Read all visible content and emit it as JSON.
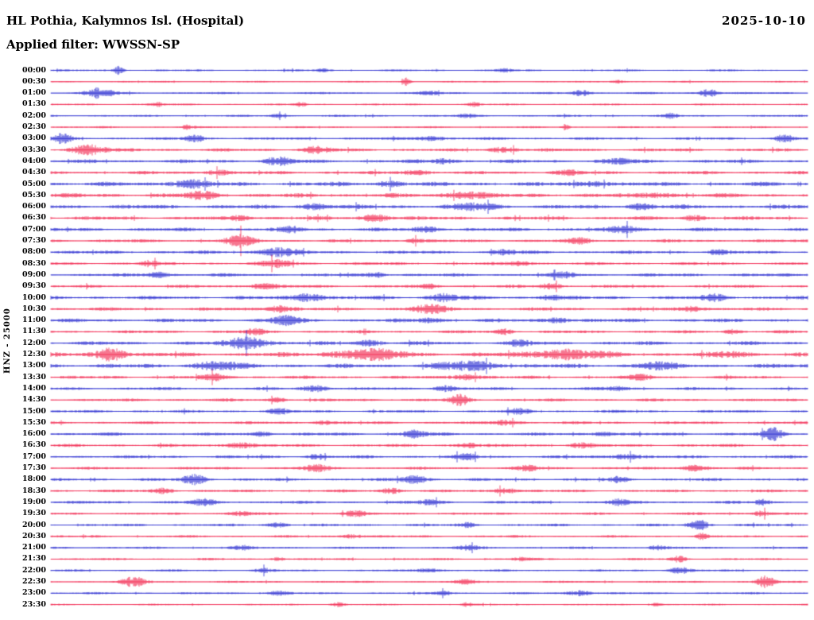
{
  "header": {
    "station_title": "HL Pothia, Kalymnos Isl. (Hospital)",
    "date": "2025-10-10",
    "filter_line": "Applied filter: WWSSN-SP"
  },
  "y_axis": {
    "channel_label": "HNZ - 25000"
  },
  "chart_data": {
    "type": "line",
    "title": "HL Pothia, Kalymnos Isl. (Hospital)",
    "subtitle": "Applied filter: WWSSN-SP",
    "date": "2025-10-10",
    "channel": "HNZ",
    "gain": "25000",
    "minutes_per_row": 30,
    "rows_count": 48,
    "legend": "none",
    "grid": false,
    "trace_colors": [
      "#1518cc",
      "#f01440"
    ],
    "rows": [
      {
        "label": "00:00",
        "base": 1.3,
        "bursts": [
          [
            0.09,
            0.006,
            5
          ],
          [
            0.36,
            0.01,
            2
          ],
          [
            0.6,
            0.01,
            2
          ]
        ]
      },
      {
        "label": "00:30",
        "base": 1.1,
        "bursts": [
          [
            0.47,
            0.005,
            4.5
          ],
          [
            0.75,
            0.01,
            2
          ]
        ]
      },
      {
        "label": "01:00",
        "base": 1.4,
        "bursts": [
          [
            0.065,
            0.018,
            6.5
          ],
          [
            0.5,
            0.012,
            2.5
          ],
          [
            0.7,
            0.012,
            4
          ],
          [
            0.87,
            0.012,
            5
          ]
        ]
      },
      {
        "label": "01:30",
        "base": 1.2,
        "bursts": [
          [
            0.14,
            0.01,
            2.5
          ],
          [
            0.33,
            0.008,
            2.5
          ],
          [
            0.56,
            0.008,
            2.5
          ]
        ]
      },
      {
        "label": "02:00",
        "base": 1.4,
        "bursts": [
          [
            0.3,
            0.01,
            2
          ],
          [
            0.55,
            0.012,
            2
          ],
          [
            0.82,
            0.01,
            2.5
          ]
        ]
      },
      {
        "label": "02:30",
        "base": 1.3,
        "bursts": [
          [
            0.18,
            0.008,
            2.5
          ],
          [
            0.68,
            0.005,
            3.5
          ]
        ]
      },
      {
        "label": "03:00",
        "base": 1.8,
        "bursts": [
          [
            0.015,
            0.012,
            5.5
          ],
          [
            0.19,
            0.012,
            4.5
          ],
          [
            0.5,
            0.02,
            2.5
          ],
          [
            0.97,
            0.012,
            4.5
          ]
        ]
      },
      {
        "label": "03:30",
        "base": 2.1,
        "bursts": [
          [
            0.05,
            0.022,
            6.5
          ],
          [
            0.35,
            0.02,
            3.5
          ],
          [
            0.6,
            0.02,
            3
          ]
        ]
      },
      {
        "label": "04:00",
        "base": 2.4,
        "bursts": [
          [
            0.3,
            0.018,
            4.5
          ],
          [
            0.52,
            0.015,
            3
          ],
          [
            0.75,
            0.02,
            2.5
          ]
        ]
      },
      {
        "label": "04:30",
        "base": 2.2,
        "bursts": [
          [
            0.22,
            0.015,
            3.5
          ],
          [
            0.48,
            0.02,
            2.5
          ],
          [
            0.68,
            0.018,
            3
          ]
        ]
      },
      {
        "label": "05:00",
        "base": 2.8,
        "bursts": [
          [
            0.18,
            0.025,
            4.5
          ],
          [
            0.45,
            0.02,
            3
          ],
          [
            0.72,
            0.02,
            3
          ]
        ]
      },
      {
        "label": "05:30",
        "base": 2.8,
        "bursts": [
          [
            0.2,
            0.02,
            4
          ],
          [
            0.55,
            0.025,
            4
          ],
          [
            0.8,
            0.02,
            3
          ]
        ]
      },
      {
        "label": "06:00",
        "base": 2.8,
        "bursts": [
          [
            0.35,
            0.02,
            3
          ],
          [
            0.56,
            0.025,
            4
          ],
          [
            0.78,
            0.02,
            3
          ]
        ]
      },
      {
        "label": "06:30",
        "base": 2.4,
        "bursts": [
          [
            0.25,
            0.015,
            3
          ],
          [
            0.43,
            0.018,
            4.5
          ],
          [
            0.85,
            0.015,
            3
          ]
        ]
      },
      {
        "label": "07:00",
        "base": 2.4,
        "bursts": [
          [
            0.32,
            0.015,
            3
          ],
          [
            0.5,
            0.02,
            3
          ],
          [
            0.76,
            0.02,
            4
          ]
        ]
      },
      {
        "label": "07:30",
        "base": 2.1,
        "bursts": [
          [
            0.25,
            0.018,
            7.5
          ],
          [
            0.48,
            0.012,
            3
          ],
          [
            0.7,
            0.015,
            3
          ]
        ]
      },
      {
        "label": "08:00",
        "base": 2.2,
        "bursts": [
          [
            0.3,
            0.022,
            5.5
          ],
          [
            0.6,
            0.015,
            3
          ],
          [
            0.88,
            0.012,
            2.5
          ]
        ]
      },
      {
        "label": "08:30",
        "base": 2.0,
        "bursts": [
          [
            0.13,
            0.01,
            3.5
          ],
          [
            0.3,
            0.018,
            4.5
          ],
          [
            0.62,
            0.015,
            3
          ]
        ]
      },
      {
        "label": "09:00",
        "base": 2.1,
        "bursts": [
          [
            0.14,
            0.014,
            4
          ],
          [
            0.43,
            0.012,
            3
          ],
          [
            0.68,
            0.015,
            3
          ]
        ]
      },
      {
        "label": "09:30",
        "base": 2.0,
        "bursts": [
          [
            0.28,
            0.018,
            3.5
          ],
          [
            0.5,
            0.012,
            3
          ],
          [
            0.66,
            0.014,
            3.5
          ]
        ]
      },
      {
        "label": "10:00",
        "base": 2.4,
        "bursts": [
          [
            0.34,
            0.02,
            5.5
          ],
          [
            0.52,
            0.018,
            4.5
          ],
          [
            0.66,
            0.015,
            3
          ],
          [
            0.88,
            0.018,
            3.5
          ]
        ]
      },
      {
        "label": "10:30",
        "base": 2.2,
        "bursts": [
          [
            0.3,
            0.018,
            4.5
          ],
          [
            0.5,
            0.025,
            4.5
          ],
          [
            0.85,
            0.015,
            3.5
          ]
        ]
      },
      {
        "label": "11:00",
        "base": 2.4,
        "bursts": [
          [
            0.31,
            0.018,
            5.5
          ],
          [
            0.5,
            0.015,
            3
          ],
          [
            0.67,
            0.015,
            3.5
          ]
        ]
      },
      {
        "label": "11:30",
        "base": 2.0,
        "bursts": [
          [
            0.27,
            0.014,
            3.5
          ],
          [
            0.6,
            0.012,
            3
          ],
          [
            0.9,
            0.012,
            2.5
          ]
        ]
      },
      {
        "label": "12:00",
        "base": 2.4,
        "bursts": [
          [
            0.26,
            0.025,
            7.5
          ],
          [
            0.42,
            0.018,
            3.5
          ],
          [
            0.62,
            0.015,
            3
          ]
        ]
      },
      {
        "label": "12:30",
        "base": 2.8,
        "bursts": [
          [
            0.08,
            0.018,
            8
          ],
          [
            0.42,
            0.05,
            5.5
          ],
          [
            0.68,
            0.05,
            5.5
          ],
          [
            0.9,
            0.02,
            3.5
          ]
        ]
      },
      {
        "label": "13:00",
        "base": 2.8,
        "bursts": [
          [
            0.22,
            0.03,
            4.5
          ],
          [
            0.55,
            0.045,
            4.5
          ],
          [
            0.8,
            0.025,
            3.5
          ]
        ]
      },
      {
        "label": "13:30",
        "base": 2.1,
        "bursts": [
          [
            0.22,
            0.018,
            3.5
          ],
          [
            0.55,
            0.018,
            3.5
          ],
          [
            0.78,
            0.015,
            3
          ]
        ]
      },
      {
        "label": "14:00",
        "base": 1.9,
        "bursts": [
          [
            0.35,
            0.018,
            3.5
          ],
          [
            0.52,
            0.014,
            3.5
          ],
          [
            0.75,
            0.015,
            2.5
          ]
        ]
      },
      {
        "label": "14:30",
        "base": 1.9,
        "bursts": [
          [
            0.3,
            0.012,
            2.5
          ],
          [
            0.54,
            0.013,
            6.5
          ]
        ]
      },
      {
        "label": "15:00",
        "base": 1.9,
        "bursts": [
          [
            0.3,
            0.018,
            2.5
          ],
          [
            0.62,
            0.015,
            2.5
          ]
        ]
      },
      {
        "label": "15:30",
        "base": 1.9,
        "bursts": [
          [
            0.36,
            0.014,
            2.5
          ],
          [
            0.6,
            0.018,
            3
          ]
        ]
      },
      {
        "label": "16:00",
        "base": 2.1,
        "bursts": [
          [
            0.28,
            0.012,
            3
          ],
          [
            0.48,
            0.014,
            4.5
          ],
          [
            0.73,
            0.012,
            3
          ],
          [
            0.955,
            0.013,
            6.5
          ]
        ]
      },
      {
        "label": "16:30",
        "base": 2.0,
        "bursts": [
          [
            0.25,
            0.018,
            3.5
          ],
          [
            0.55,
            0.014,
            3
          ],
          [
            0.7,
            0.014,
            3
          ]
        ]
      },
      {
        "label": "17:00",
        "base": 2.0,
        "bursts": [
          [
            0.35,
            0.012,
            3
          ],
          [
            0.55,
            0.014,
            3.5
          ],
          [
            0.76,
            0.018,
            3.5
          ]
        ]
      },
      {
        "label": "17:30",
        "base": 1.8,
        "bursts": [
          [
            0.35,
            0.018,
            3.5
          ],
          [
            0.63,
            0.014,
            3
          ],
          [
            0.85,
            0.018,
            3.5
          ]
        ]
      },
      {
        "label": "18:00",
        "base": 1.9,
        "bursts": [
          [
            0.19,
            0.016,
            5.5
          ],
          [
            0.48,
            0.018,
            4.5
          ],
          [
            0.75,
            0.014,
            3
          ]
        ]
      },
      {
        "label": "18:30",
        "base": 1.8,
        "bursts": [
          [
            0.15,
            0.013,
            3.5
          ],
          [
            0.45,
            0.015,
            3
          ],
          [
            0.6,
            0.016,
            3.5
          ]
        ]
      },
      {
        "label": "19:00",
        "base": 1.9,
        "bursts": [
          [
            0.2,
            0.016,
            3.5
          ],
          [
            0.5,
            0.014,
            3
          ],
          [
            0.75,
            0.013,
            3.5
          ],
          [
            0.94,
            0.01,
            3.5
          ]
        ]
      },
      {
        "label": "19:30",
        "base": 1.7,
        "bursts": [
          [
            0.25,
            0.014,
            2.5
          ],
          [
            0.4,
            0.016,
            3
          ],
          [
            0.94,
            0.013,
            3.5
          ]
        ]
      },
      {
        "label": "20:00",
        "base": 1.7,
        "bursts": [
          [
            0.3,
            0.014,
            2.5
          ],
          [
            0.55,
            0.012,
            2.5
          ],
          [
            0.855,
            0.013,
            7
          ]
        ]
      },
      {
        "label": "20:30",
        "base": 1.6,
        "bursts": [
          [
            0.4,
            0.016,
            2.5
          ],
          [
            0.86,
            0.007,
            3.5
          ]
        ]
      },
      {
        "label": "21:00",
        "base": 1.5,
        "bursts": [
          [
            0.25,
            0.013,
            2.5
          ],
          [
            0.55,
            0.016,
            2.5
          ],
          [
            0.8,
            0.012,
            2.5
          ]
        ]
      },
      {
        "label": "21:30",
        "base": 1.4,
        "bursts": [
          [
            0.3,
            0.009,
            2.5
          ],
          [
            0.62,
            0.012,
            2
          ],
          [
            0.83,
            0.009,
            3.5
          ]
        ]
      },
      {
        "label": "22:00",
        "base": 1.4,
        "bursts": [
          [
            0.28,
            0.012,
            2.5
          ],
          [
            0.5,
            0.016,
            2.5
          ],
          [
            0.83,
            0.013,
            4.5
          ]
        ]
      },
      {
        "label": "22:30",
        "base": 1.4,
        "bursts": [
          [
            0.11,
            0.016,
            5.5
          ],
          [
            0.55,
            0.013,
            2.5
          ],
          [
            0.945,
            0.011,
            7.5
          ]
        ]
      },
      {
        "label": "23:00",
        "base": 1.4,
        "bursts": [
          [
            0.3,
            0.016,
            2.5
          ],
          [
            0.52,
            0.012,
            2.5
          ],
          [
            0.7,
            0.016,
            3.5
          ]
        ]
      },
      {
        "label": "23:30",
        "base": 1.1,
        "bursts": [
          [
            0.38,
            0.009,
            2.5
          ],
          [
            0.55,
            0.007,
            2.5
          ],
          [
            0.8,
            0.008,
            2
          ]
        ]
      }
    ]
  }
}
